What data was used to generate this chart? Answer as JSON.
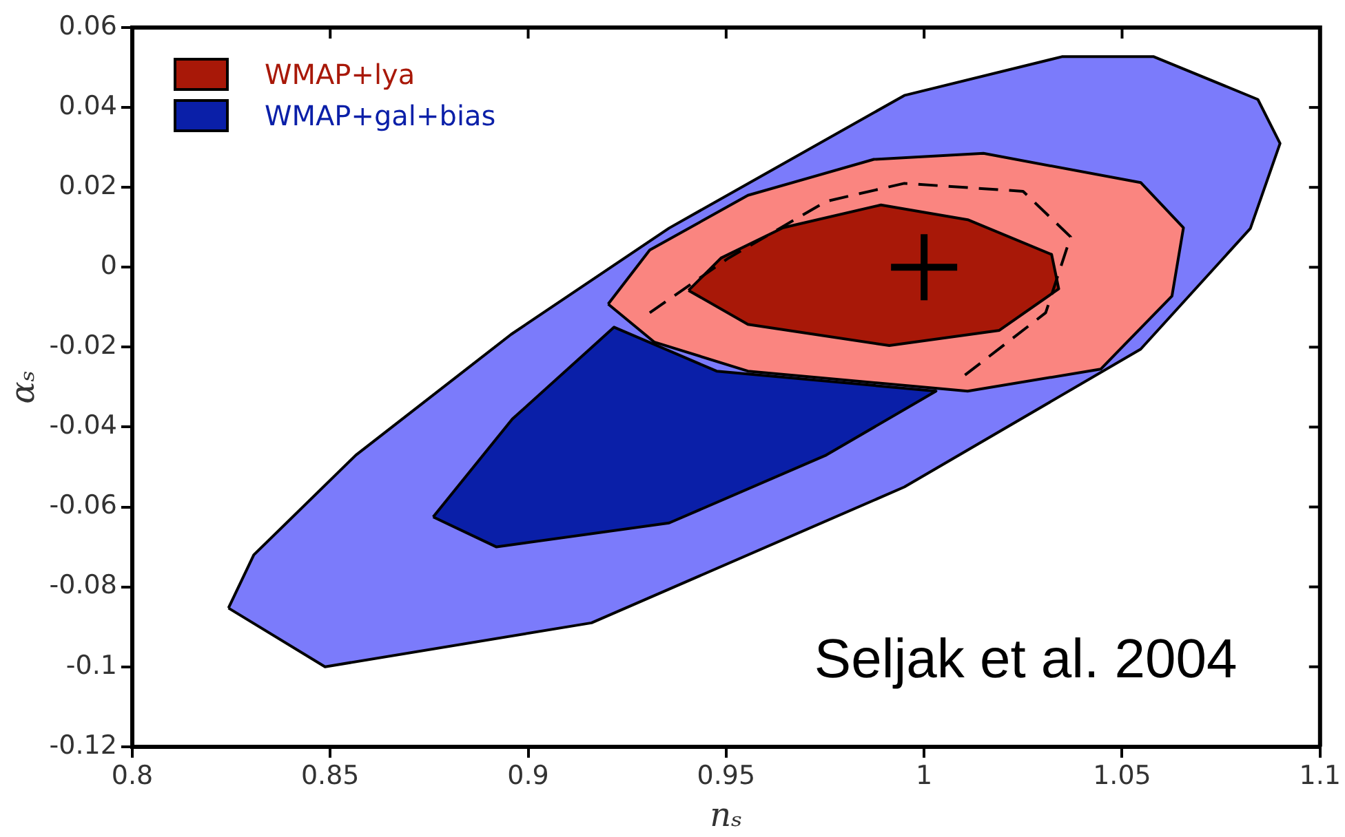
{
  "chart_data": {
    "type": "area",
    "xlabel": "nₛ",
    "ylabel": "αₛ",
    "xlim": [
      0.8,
      1.1
    ],
    "xticks": [
      0.8,
      0.85,
      0.9,
      0.95,
      1,
      1.05,
      1.1
    ],
    "ylim": [
      -0.12,
      0.06
    ],
    "yticks": [
      -0.12,
      -0.1,
      -0.08,
      -0.06,
      -0.04,
      -0.02,
      0,
      0.02,
      0.04,
      0.06
    ],
    "grid": false,
    "legend": "top left",
    "annotations": [
      "Seljak et al. 2004"
    ],
    "series": [
      {
        "color": "#7b7bfb",
        "x": [
          0.8243,
          0.8487,
          0.916,
          0.995,
          1.0547,
          1.0824,
          1.0899,
          1.0843,
          1.058,
          1.0348,
          0.995,
          0.9356,
          0.8957,
          0.8565,
          0.8307
        ],
        "values": [
          -0.0853,
          -0.1,
          -0.089,
          -0.055,
          -0.0205,
          0.0097,
          0.031,
          0.042,
          0.0527,
          0.0527,
          0.043,
          0.0098,
          -0.0168,
          -0.047,
          -0.072
        ]
      },
      {
        "name": "WMAP+gal+bias",
        "color": "#0a1fa8",
        "x": [
          0.876,
          0.892,
          0.9356,
          0.9753,
          1.003,
          0.9476,
          0.9217,
          0.896
        ],
        "values": [
          -0.0625,
          -0.07,
          -0.064,
          -0.047,
          -0.031,
          -0.026,
          -0.015,
          -0.038
        ]
      },
      {
        "color": "#fa8580",
        "x": [
          0.9202,
          0.9318,
          0.9555,
          1.011,
          1.0446,
          1.0626,
          1.0655,
          1.0547,
          1.015,
          0.9873,
          0.9555,
          0.9307
        ],
        "values": [
          -0.0092,
          -0.0187,
          -0.026,
          -0.031,
          -0.0255,
          -0.0072,
          0.0099,
          0.0212,
          0.0285,
          0.027,
          0.018,
          0.0043
        ]
      },
      {
        "name": "WMAP+lya",
        "color": "#a81808",
        "x": [
          0.9405,
          0.9555,
          0.9912,
          1.019,
          1.034,
          1.0322,
          1.011,
          0.9891,
          0.9644,
          0.9487
        ],
        "values": [
          -0.0058,
          -0.0143,
          -0.0196,
          -0.0158,
          -0.0054,
          0.0032,
          0.0119,
          0.0156,
          0.0099,
          0.0023
        ]
      },
      {
        "type": "line",
        "line_style": "dashed",
        "color": "#000000",
        "x": [
          0.9307,
          0.9506,
          0.9753,
          0.995,
          1.025,
          1.037,
          1.0307,
          1.009
        ],
        "values": [
          -0.0114,
          0.0023,
          0.0165,
          0.021,
          0.019,
          0.0076,
          -0.0114,
          -0.028
        ]
      },
      {
        "type": "scatter",
        "marker": "cross",
        "color": "#000000",
        "x": [
          1
        ],
        "values": [
          0
        ]
      }
    ]
  }
}
